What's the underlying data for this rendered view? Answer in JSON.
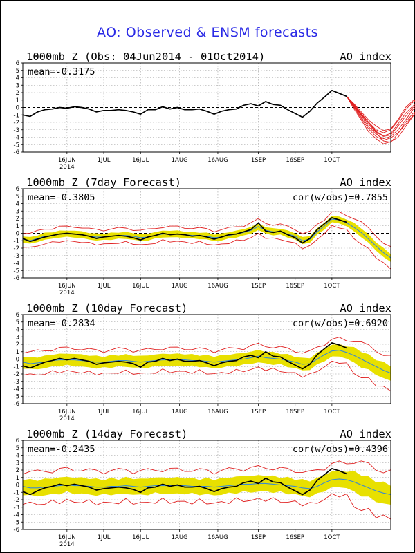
{
  "title": "AO: Observed & ENSM forecasts",
  "colors": {
    "observed": "#000000",
    "ens_member": "#e02020",
    "ens_spread": "#e8e000",
    "ens_mean": "#3a8ad0",
    "title": "#2a2ae6",
    "grid": "#9a9a9a"
  },
  "chart_data": [
    {
      "type": "line",
      "title": "1000mb Z (Obs: 04Jun2014 - 01Oct2014)",
      "right_title": "AO index",
      "stat_left": "mean=-0.3175",
      "stat_right": "",
      "ylim": [
        -6,
        6
      ],
      "yticks": [
        6,
        5,
        4,
        3,
        2,
        1,
        0,
        -1,
        -2,
        -3,
        -4,
        -5,
        -6
      ],
      "xticks": [
        "16JUN",
        "1JUL",
        "16JUL",
        "1AUG",
        "16AUG",
        "1SEP",
        "16SEP",
        "1OCT"
      ],
      "xyear": "2014",
      "observed": [
        -1.0,
        -1.2,
        -0.6,
        -0.3,
        -0.2,
        0,
        -0.1,
        0.1,
        0,
        -0.2,
        -0.6,
        -0.4,
        -0.4,
        -0.3,
        -0.4,
        -0.6,
        -0.9,
        -0.3,
        -0.3,
        0.1,
        -0.2,
        0,
        -0.3,
        -0.3,
        -0.2,
        -0.5,
        -0.9,
        -0.5,
        -0.3,
        -0.2,
        0.3,
        0.5,
        0.2,
        0.8,
        0.4,
        0.3,
        -0.3,
        -0.8,
        -1.3,
        -0.5,
        0.6,
        1.4,
        2.3,
        1.9,
        1.5
      ],
      "ens_members": [
        [
          1.5,
          0.3,
          -1.0,
          -2.0,
          -3.2,
          -3.8,
          -3.5,
          -2.2,
          -0.8,
          0.2,
          0.8,
          0.4,
          -0.6
        ],
        [
          1.5,
          0.1,
          -1.3,
          -2.6,
          -3.6,
          -4.2,
          -3.9,
          -3.0,
          -1.7,
          -0.3,
          0.5,
          -0.2,
          -1.0
        ],
        [
          1.5,
          0.5,
          -0.6,
          -1.7,
          -2.5,
          -3.1,
          -2.9,
          -1.6,
          0.0,
          0.9,
          1.0,
          0.3,
          -0.5
        ],
        [
          1.5,
          -0.2,
          -1.7,
          -3.3,
          -4.2,
          -4.9,
          -4.6,
          -4.0,
          -2.6,
          -1.2,
          -0.4,
          -1.1,
          -1.6
        ],
        [
          1.5,
          0.2,
          -1.1,
          -2.3,
          -3.4,
          -4.5,
          -4.7,
          -3.5,
          -2.0,
          -0.8,
          -0.3,
          -0.8,
          -1.4
        ],
        [
          1.5,
          0.4,
          -0.8,
          -2.0,
          -3.0,
          -3.4,
          -3.0,
          -1.8,
          -0.3,
          0.7,
          1.2,
          0.7,
          -0.2
        ],
        [
          1.5,
          0.0,
          -1.5,
          -2.9,
          -3.9,
          -4.4,
          -4.1,
          -3.4,
          -2.3,
          -1.1,
          -0.2,
          -0.6,
          -1.2
        ],
        [
          1.5,
          0.3,
          -0.9,
          -2.1,
          -3.3,
          -3.9,
          -3.7,
          -2.5,
          -1.2,
          0.0,
          0.4,
          -0.4,
          -1.2
        ]
      ]
    },
    {
      "type": "line",
      "title": "1000mb Z (7day Forecast)",
      "right_title": "AO index",
      "stat_left": "mean=-0.3805",
      "stat_right": "cor(w/obs)=0.7855",
      "ylim": [
        -6,
        6
      ],
      "yticks": [
        6,
        5,
        4,
        3,
        2,
        1,
        0,
        -1,
        -2,
        -3,
        -4,
        -5,
        -6
      ],
      "xticks": [
        "16JUN",
        "1JUL",
        "16JUL",
        "1AUG",
        "16AUG",
        "1SEP",
        "16SEP",
        "1OCT"
      ],
      "xyear": "2014",
      "observed": [
        -0.7,
        -1.1,
        -0.8,
        -0.5,
        -0.3,
        -0.1,
        0,
        -0.1,
        -0.2,
        -0.4,
        -0.7,
        -0.5,
        -0.4,
        -0.3,
        -0.4,
        -0.6,
        -0.9,
        -0.5,
        -0.3,
        0.0,
        -0.2,
        -0.1,
        -0.2,
        -0.4,
        -0.3,
        -0.5,
        -0.8,
        -0.5,
        -0.2,
        -0.1,
        0.2,
        0.5,
        1.4,
        0.3,
        0.1,
        0.3,
        -0.2,
        -0.6,
        -1.3,
        -0.7,
        0.5,
        1.3,
        2.1,
        1.8,
        1.5
      ],
      "ens_mean": [
        -0.8,
        -1.0,
        -0.7,
        -0.4,
        -0.3,
        -0.1,
        -0.1,
        -0.1,
        -0.2,
        -0.4,
        -0.5,
        -0.5,
        -0.4,
        -0.3,
        -0.3,
        -0.4,
        -0.6,
        -0.5,
        -0.3,
        -0.1,
        -0.1,
        -0.1,
        -0.2,
        -0.3,
        -0.3,
        -0.4,
        -0.6,
        -0.5,
        -0.3,
        -0.1,
        0.1,
        0.4,
        0.9,
        0.4,
        0.2,
        0.2,
        -0.1,
        -0.4,
        -1.0,
        -0.8,
        0.2,
        1.0,
        1.9,
        1.8,
        1.4,
        0.8,
        0.1,
        -0.8,
        -1.7,
        -2.6,
        -3.3
      ],
      "spread": 0.5,
      "env": 1.0
    },
    {
      "type": "line",
      "title": "1000mb Z (10day Forecast)",
      "right_title": "AO index",
      "stat_left": "mean=-0.2834",
      "stat_right": "cor(w/obs)=0.6920",
      "ylim": [
        -6,
        6
      ],
      "yticks": [
        6,
        5,
        4,
        3,
        2,
        1,
        0,
        -1,
        -2,
        -3,
        -4,
        -5,
        -6
      ],
      "xticks": [
        "16JUN",
        "1JUL",
        "16JUL",
        "1AUG",
        "16AUG",
        "1SEP",
        "16SEP",
        "1OCT"
      ],
      "xyear": "2014",
      "observed": [
        -0.9,
        -1.2,
        -0.8,
        -0.4,
        -0.2,
        0.1,
        -0.1,
        0.1,
        -0.1,
        -0.3,
        -0.7,
        -0.5,
        -0.4,
        -0.3,
        -0.4,
        -0.6,
        -1.1,
        -0.4,
        -0.3,
        0.1,
        -0.2,
        0.0,
        -0.3,
        -0.3,
        -0.2,
        -0.5,
        -0.9,
        -0.5,
        -0.3,
        -0.2,
        0.3,
        0.5,
        0.2,
        1.0,
        0.4,
        0.3,
        -0.3,
        -0.8,
        -1.3,
        -0.7,
        0.6,
        1.4,
        2.2,
        1.9,
        1.5
      ],
      "ens_mean": [
        -0.4,
        -0.6,
        -0.5,
        -0.4,
        -0.2,
        -0.1,
        -0.1,
        -0.1,
        -0.2,
        -0.3,
        -0.4,
        -0.4,
        -0.3,
        -0.2,
        -0.2,
        -0.3,
        -0.4,
        -0.3,
        -0.2,
        -0.1,
        -0.1,
        -0.1,
        -0.1,
        -0.2,
        -0.2,
        -0.3,
        -0.4,
        -0.3,
        -0.2,
        -0.1,
        0.0,
        0.2,
        0.4,
        0.2,
        0.1,
        0.0,
        -0.2,
        -0.4,
        -0.7,
        -0.6,
        0.0,
        0.6,
        1.1,
        1.2,
        0.9,
        0.5,
        0.0,
        -0.5,
        -1.0,
        -1.5,
        -1.9
      ],
      "spread": 0.9,
      "env": 1.6
    },
    {
      "type": "line",
      "title": "1000mb Z (14day Forecast)",
      "right_title": "AO index",
      "stat_left": "mean=-0.2435",
      "stat_right": "cor(w/obs)=0.4396",
      "ylim": [
        -6,
        6
      ],
      "yticks": [
        6,
        5,
        4,
        3,
        2,
        1,
        0,
        -1,
        -2,
        -3,
        -4,
        -5,
        -6
      ],
      "xticks": [
        "16JUN",
        "1JUL",
        "16JUL",
        "1AUG",
        "16AUG",
        "1SEP",
        "16SEP",
        "1OCT"
      ],
      "xyear": "2014",
      "observed": [
        -0.9,
        -1.3,
        -0.8,
        -0.4,
        -0.2,
        0.1,
        -0.1,
        0.1,
        -0.1,
        -0.3,
        -0.7,
        -0.5,
        -0.4,
        -0.3,
        -0.4,
        -0.6,
        -1.0,
        -0.4,
        -0.3,
        0.1,
        -0.2,
        0.0,
        -0.3,
        -0.3,
        -0.2,
        -0.5,
        -0.9,
        -0.5,
        -0.3,
        -0.2,
        0.3,
        0.5,
        0.2,
        0.9,
        0.4,
        0.3,
        -0.3,
        -0.8,
        -1.3,
        -0.7,
        0.6,
        1.4,
        2.2,
        1.9,
        1.5
      ],
      "ens_mean": [
        -0.2,
        -0.4,
        -0.4,
        -0.3,
        -0.2,
        -0.1,
        0.0,
        -0.1,
        -0.1,
        -0.2,
        -0.3,
        -0.3,
        -0.2,
        -0.2,
        -0.1,
        -0.2,
        -0.3,
        -0.2,
        -0.1,
        -0.1,
        -0.1,
        -0.1,
        -0.1,
        -0.2,
        -0.2,
        -0.2,
        -0.3,
        -0.2,
        -0.1,
        0.0,
        0.1,
        0.1,
        0.2,
        0.2,
        0.1,
        0.0,
        -0.1,
        -0.2,
        -0.4,
        -0.5,
        -0.2,
        0.3,
        0.7,
        0.8,
        0.7,
        0.4,
        0.0,
        -0.4,
        -0.8,
        -1.1,
        -1.3
      ],
      "spread": 1.2,
      "env": 2.2
    }
  ]
}
